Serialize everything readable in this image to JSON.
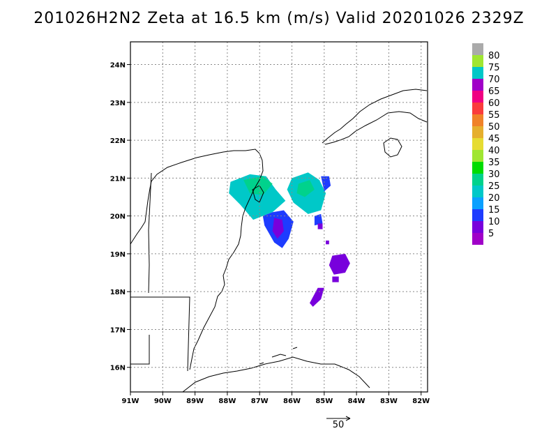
{
  "title": "201026H2N2 Zeta at 16.5 km (m/s) Valid 20201026 2329Z",
  "map": {
    "lon_range": [
      -91,
      -81.8
    ],
    "lat_range": [
      15.35,
      24.6
    ],
    "lon_ticks": [
      {
        "value": -91,
        "label": "91W"
      },
      {
        "value": -90,
        "label": "90W"
      },
      {
        "value": -89,
        "label": "89W"
      },
      {
        "value": -88,
        "label": "88W"
      },
      {
        "value": -87,
        "label": "87W"
      },
      {
        "value": -86,
        "label": "86W"
      },
      {
        "value": -85,
        "label": "85W"
      },
      {
        "value": -84,
        "label": "84W"
      },
      {
        "value": -83,
        "label": "83W"
      },
      {
        "value": -82,
        "label": "82W"
      }
    ],
    "lat_ticks": [
      {
        "value": 24,
        "label": "24N"
      },
      {
        "value": 23,
        "label": "23N"
      },
      {
        "value": 22,
        "label": "22N"
      },
      {
        "value": 21,
        "label": "21N"
      },
      {
        "value": 20,
        "label": "20N"
      },
      {
        "value": 19,
        "label": "19N"
      },
      {
        "value": 18,
        "label": "18N"
      },
      {
        "value": 17,
        "label": "17N"
      },
      {
        "value": 16,
        "label": "16N"
      }
    ],
    "grid": "dotted",
    "wind_reference_label": "50",
    "regions": [
      {
        "value": 22,
        "polygon": [
          [
            -87.9,
            20.9
          ],
          [
            -87.3,
            21.1
          ],
          [
            -86.8,
            21.05
          ],
          [
            -86.5,
            20.7
          ],
          [
            -86.2,
            20.4
          ],
          [
            -86.6,
            20.1
          ],
          [
            -87.2,
            19.9
          ],
          [
            -87.6,
            20.3
          ],
          [
            -87.95,
            20.6
          ]
        ]
      },
      {
        "value": 22,
        "polygon": [
          [
            -86.0,
            21.0
          ],
          [
            -85.5,
            21.15
          ],
          [
            -85.15,
            20.95
          ],
          [
            -84.95,
            20.6
          ],
          [
            -85.1,
            20.15
          ],
          [
            -85.5,
            20.05
          ],
          [
            -85.95,
            20.35
          ],
          [
            -86.15,
            20.7
          ]
        ]
      },
      {
        "value": 25,
        "polygon": [
          [
            -87.5,
            20.95
          ],
          [
            -86.9,
            21.05
          ],
          [
            -86.6,
            20.85
          ],
          [
            -86.9,
            20.55
          ],
          [
            -87.3,
            20.6
          ]
        ]
      },
      {
        "value": 25,
        "polygon": [
          [
            -85.8,
            20.85
          ],
          [
            -85.45,
            20.95
          ],
          [
            -85.3,
            20.7
          ],
          [
            -85.6,
            20.5
          ],
          [
            -85.85,
            20.6
          ]
        ]
      },
      {
        "value": 12,
        "polygon": [
          [
            -86.6,
            20.1
          ],
          [
            -86.25,
            20.15
          ],
          [
            -85.95,
            19.85
          ],
          [
            -86.1,
            19.4
          ],
          [
            -86.3,
            19.15
          ],
          [
            -86.55,
            19.3
          ],
          [
            -86.85,
            19.75
          ],
          [
            -86.9,
            20.0
          ]
        ]
      },
      {
        "value": 12,
        "polygon": [
          [
            -85.1,
            21.05
          ],
          [
            -84.85,
            21.05
          ],
          [
            -84.8,
            20.8
          ],
          [
            -85.0,
            20.65
          ]
        ]
      },
      {
        "value": 12,
        "polygon": [
          [
            -85.3,
            20.0
          ],
          [
            -85.1,
            20.05
          ],
          [
            -85.05,
            19.8
          ],
          [
            -85.3,
            19.75
          ]
        ]
      },
      {
        "value": 5,
        "polygon": [
          [
            -86.55,
            19.95
          ],
          [
            -86.3,
            19.9
          ],
          [
            -86.25,
            19.6
          ],
          [
            -86.45,
            19.4
          ],
          [
            -86.6,
            19.6
          ]
        ]
      },
      {
        "value": 5,
        "polygon": [
          [
            -84.75,
            18.95
          ],
          [
            -84.35,
            19.0
          ],
          [
            -84.2,
            18.75
          ],
          [
            -84.35,
            18.5
          ],
          [
            -84.7,
            18.45
          ],
          [
            -84.85,
            18.7
          ]
        ]
      },
      {
        "value": 5,
        "polygon": [
          [
            -84.75,
            18.4
          ],
          [
            -84.55,
            18.4
          ],
          [
            -84.55,
            18.25
          ],
          [
            -84.75,
            18.25
          ]
        ]
      },
      {
        "value": 5,
        "polygon": [
          [
            -85.2,
            18.1
          ],
          [
            -85.0,
            18.1
          ],
          [
            -85.1,
            17.8
          ],
          [
            -85.35,
            17.6
          ],
          [
            -85.45,
            17.7
          ]
        ]
      },
      {
        "value": 5,
        "polygon": [
          [
            -85.2,
            19.8
          ],
          [
            -85.05,
            19.8
          ],
          [
            -85.05,
            19.65
          ],
          [
            -85.2,
            19.65
          ]
        ]
      },
      {
        "value": 5,
        "polygon": [
          [
            -84.95,
            19.35
          ],
          [
            -84.85,
            19.35
          ],
          [
            -84.85,
            19.25
          ],
          [
            -84.95,
            19.25
          ]
        ]
      }
    ]
  },
  "colorbar": {
    "colors": [
      "#a000c8",
      "#7800dc",
      "#1e3cff",
      "#0aa0ff",
      "#00c8c8",
      "#00d28c",
      "#00dc00",
      "#a0e632",
      "#e6dc32",
      "#e6af2d",
      "#f08228",
      "#fa3c3c",
      "#f00082",
      "#a000c8",
      "#00c8c8",
      "#a0e632",
      "#aaaaaa"
    ],
    "labels": [
      "5",
      "10",
      "15",
      "20",
      "25",
      "30",
      "35",
      "40",
      "45",
      "50",
      "55",
      "60",
      "65",
      "70",
      "75",
      "80"
    ]
  }
}
